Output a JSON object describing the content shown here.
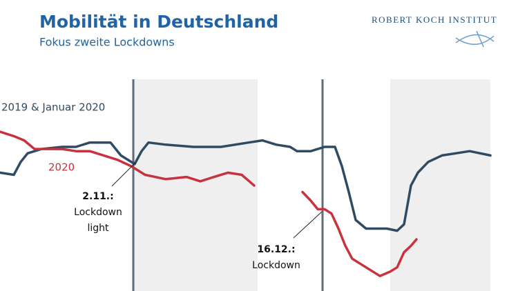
{
  "chart_data": {
    "type": "line",
    "title": "Mobilität in Deutschland",
    "subtitle": "Fokus zweite Lockdowns",
    "logo": "ROBERT KOCH INSTITUT",
    "xlim": [
      0,
      710
    ],
    "ylim": [
      0,
      100
    ],
    "series": [
      {
        "name": "2019 & Januar 2020",
        "color": "#2f4a63",
        "x": [
          0,
          20,
          30,
          40,
          60,
          90,
          110,
          130,
          160,
          175,
          195,
          205,
          215,
          240,
          280,
          320,
          360,
          380,
          400,
          420,
          430,
          450,
          470,
          485,
          495,
          505,
          515,
          530,
          545,
          560,
          575,
          585,
          595,
          605,
          620,
          640,
          660,
          680,
          710
        ],
        "values": [
          55,
          54,
          60,
          64,
          66,
          67,
          67,
          69,
          69,
          63,
          59,
          65,
          69,
          68,
          67,
          67,
          69,
          70,
          68,
          67,
          65,
          65,
          67,
          67,
          58,
          46,
          33,
          29,
          29,
          29,
          28,
          31,
          49,
          55,
          60,
          63,
          64,
          65,
          63
        ]
      },
      {
        "name": "2020",
        "color": "#c8323f",
        "x": [
          0,
          20,
          35,
          50,
          70,
          90,
          110,
          130,
          150,
          170,
          190,
          210,
          240,
          270,
          290,
          310,
          330,
          350,
          368,
          400,
          438,
          450,
          460,
          470,
          480,
          490,
          500,
          510,
          530,
          550,
          565,
          575,
          585,
          595,
          603
        ],
        "values": [
          74,
          72,
          70,
          66,
          66,
          66,
          65,
          65,
          63,
          61,
          58,
          54,
          52,
          53,
          51,
          53,
          55,
          54,
          49,
          null,
          46,
          42,
          38,
          38,
          36,
          29,
          21,
          15,
          11,
          7,
          9,
          11,
          18,
          21,
          24
        ]
      }
    ],
    "events": [
      {
        "x": 193,
        "date": "2.11.:",
        "label": [
          "Lockdown",
          "light"
        ]
      },
      {
        "x": 467,
        "date": "16.12.:",
        "label": [
          "Lockdown"
        ]
      }
    ]
  }
}
